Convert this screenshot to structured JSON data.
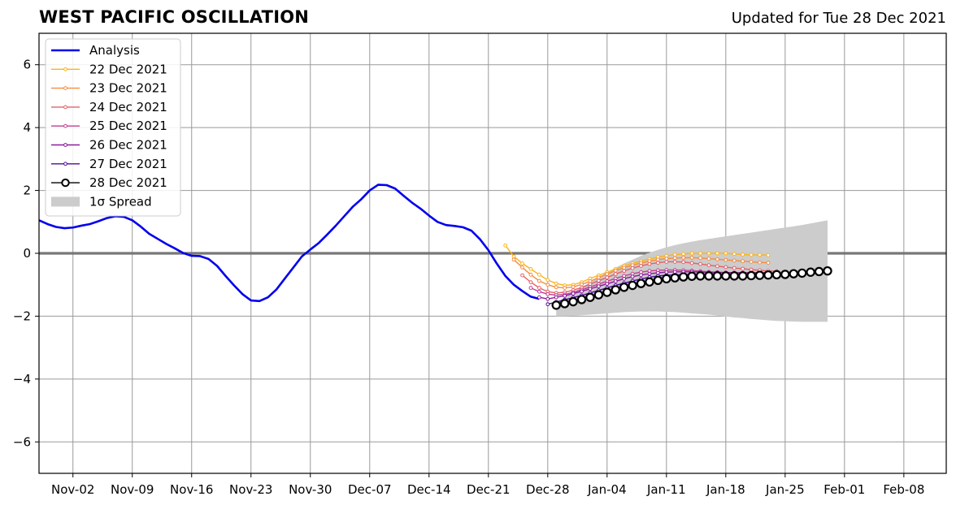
{
  "header": {
    "title": "WEST PACIFIC OSCILLATION",
    "updated": "Updated for Tue 28 Dec 2021"
  },
  "chart_data": {
    "type": "line",
    "title": "WEST PACIFIC OSCILLATION",
    "subtitle": "Updated for Tue 28 Dec 2021",
    "xlabel": "",
    "ylabel": "",
    "ylim": [
      -7,
      7
    ],
    "xlim": [
      "2021-10-29",
      "2022-02-13"
    ],
    "yticks": [
      -6,
      -4,
      -2,
      0,
      2,
      4,
      6
    ],
    "ytick_labels": [
      "−6",
      "−4",
      "−2",
      "0",
      "2",
      "4",
      "6"
    ],
    "xticks": [
      "2021-11-02",
      "2021-11-09",
      "2021-11-16",
      "2021-11-23",
      "2021-11-30",
      "2021-12-07",
      "2021-12-14",
      "2021-12-21",
      "2021-12-28",
      "2022-01-04",
      "2022-01-11",
      "2022-01-18",
      "2022-01-25",
      "2022-02-01",
      "2022-02-08"
    ],
    "xtick_labels": [
      "Nov-02",
      "Nov-09",
      "Nov-16",
      "Nov-23",
      "Nov-30",
      "Dec-07",
      "Dec-14",
      "Dec-21",
      "Dec-28",
      "Jan-04",
      "Jan-11",
      "Jan-18",
      "Jan-25",
      "Feb-01",
      "Feb-08"
    ],
    "grid": true,
    "legend_position": "top-left",
    "analysis": {
      "name": "Analysis",
      "color": "#0000ee",
      "start": "2021-10-29",
      "values": [
        1.05,
        0.93,
        0.84,
        0.8,
        0.82,
        0.88,
        0.93,
        1.02,
        1.12,
        1.18,
        1.16,
        1.05,
        0.85,
        0.62,
        0.46,
        0.3,
        0.16,
        0.01,
        -0.08,
        -0.09,
        -0.18,
        -0.4,
        -0.72,
        -1.02,
        -1.3,
        -1.5,
        -1.52,
        -1.4,
        -1.15,
        -0.8,
        -0.45,
        -0.1,
        0.12,
        0.33,
        0.6,
        0.88,
        1.18,
        1.48,
        1.72,
        2.0,
        2.18,
        2.17,
        2.06,
        1.83,
        1.61,
        1.42,
        1.2,
        1.0,
        0.9,
        0.87,
        0.83,
        0.72,
        0.45,
        0.1,
        -0.33,
        -0.72,
        -1.0,
        -1.2,
        -1.38,
        -1.45
      ]
    },
    "forecasts": [
      {
        "name": "22 Dec 2021",
        "color": "#fbb31a",
        "start": "2021-12-23",
        "values": [
          0.25,
          -0.1,
          -0.32,
          -0.5,
          -0.68,
          -0.85,
          -0.96,
          -1.02,
          -1.0,
          -0.92,
          -0.8,
          -0.7,
          -0.6,
          -0.5,
          -0.4,
          -0.32,
          -0.25,
          -0.18,
          -0.12,
          -0.08,
          -0.04,
          -0.02,
          0.0,
          0.0,
          0.0,
          0.0,
          0.0,
          -0.02,
          -0.04,
          -0.05,
          -0.05,
          -0.06
        ]
      },
      {
        "name": "23 Dec 2021",
        "color": "#f58b40",
        "start": "2021-12-24",
        "values": [
          -0.2,
          -0.45,
          -0.68,
          -0.88,
          -1.0,
          -1.08,
          -1.1,
          -1.07,
          -0.99,
          -0.89,
          -0.77,
          -0.66,
          -0.55,
          -0.46,
          -0.38,
          -0.31,
          -0.25,
          -0.2,
          -0.17,
          -0.15,
          -0.14,
          -0.14,
          -0.15,
          -0.17,
          -0.19,
          -0.21,
          -0.23,
          -0.25,
          -0.27,
          -0.29,
          -0.3
        ]
      },
      {
        "name": "24 Dec 2021",
        "color": "#e3616a",
        "start": "2021-12-25",
        "values": [
          -0.7,
          -0.92,
          -1.1,
          -1.22,
          -1.26,
          -1.24,
          -1.17,
          -1.09,
          -0.98,
          -0.87,
          -0.77,
          -0.66,
          -0.56,
          -0.47,
          -0.4,
          -0.34,
          -0.3,
          -0.27,
          -0.27,
          -0.28,
          -0.31,
          -0.34,
          -0.38,
          -0.41,
          -0.44,
          -0.47,
          -0.49,
          -0.52,
          -0.54,
          -0.56,
          -0.57
        ]
      },
      {
        "name": "25 Dec 2021",
        "color": "#c23f8f",
        "start": "2021-12-26",
        "values": [
          -1.1,
          -1.22,
          -1.3,
          -1.33,
          -1.31,
          -1.24,
          -1.16,
          -1.07,
          -0.98,
          -0.89,
          -0.8,
          -0.72,
          -0.65,
          -0.6,
          -0.56,
          -0.54,
          -0.53,
          -0.53,
          -0.54,
          -0.55,
          -0.57,
          -0.59,
          -0.6,
          -0.61,
          -0.62,
          -0.62,
          -0.62,
          -0.62,
          -0.62
        ]
      },
      {
        "name": "26 Dec 2021",
        "color": "#8e1a9c",
        "start": "2021-12-27",
        "values": [
          -1.4,
          -1.45,
          -1.4,
          -1.35,
          -1.28,
          -1.21,
          -1.13,
          -1.05,
          -0.97,
          -0.89,
          -0.81,
          -0.74,
          -0.69,
          -0.65,
          -0.62,
          -0.6,
          -0.59,
          -0.59,
          -0.59,
          -0.6,
          -0.61,
          -0.61,
          -0.62,
          -0.62,
          -0.62,
          -0.62,
          -0.62,
          -0.62
        ]
      },
      {
        "name": "27 Dec 2021",
        "color": "#4a0c9c",
        "start": "2021-12-28",
        "values": [
          -1.62,
          -1.55,
          -1.48,
          -1.41,
          -1.34,
          -1.26,
          -1.18,
          -1.1,
          -1.02,
          -0.95,
          -0.88,
          -0.82,
          -0.76,
          -0.72,
          -0.7,
          -0.69,
          -0.68,
          -0.68,
          -0.68,
          -0.68,
          -0.68,
          -0.68,
          -0.68,
          -0.67,
          -0.66,
          -0.65,
          -0.64,
          -0.62
        ]
      }
    ],
    "main_forecast": {
      "name": "28 Dec 2021",
      "color": "#000000",
      "start": "2021-12-29",
      "values": [
        -1.65,
        -1.6,
        -1.54,
        -1.47,
        -1.4,
        -1.32,
        -1.24,
        -1.16,
        -1.08,
        -1.02,
        -0.96,
        -0.91,
        -0.86,
        -0.81,
        -0.78,
        -0.75,
        -0.73,
        -0.72,
        -0.72,
        -0.72,
        -0.72,
        -0.72,
        -0.72,
        -0.71,
        -0.7,
        -0.69,
        -0.68,
        -0.67,
        -0.65,
        -0.63,
        -0.6,
        -0.58,
        -0.56
      ]
    },
    "spread": {
      "name": "1σ Spread",
      "color": "#cccccc",
      "start": "2021-12-29",
      "upper": [
        -1.55,
        -1.4,
        -1.24,
        -1.08,
        -0.92,
        -0.76,
        -0.6,
        -0.46,
        -0.32,
        -0.2,
        -0.08,
        0.02,
        0.11,
        0.19,
        0.26,
        0.32,
        0.37,
        0.42,
        0.46,
        0.5,
        0.54,
        0.58,
        0.62,
        0.66,
        0.7,
        0.74,
        0.78,
        0.82,
        0.86,
        0.9,
        0.95,
        1.0,
        1.05
      ],
      "lower": [
        -2.0,
        -2.0,
        -1.99,
        -1.97,
        -1.95,
        -1.93,
        -1.91,
        -1.89,
        -1.87,
        -1.86,
        -1.85,
        -1.85,
        -1.85,
        -1.86,
        -1.87,
        -1.89,
        -1.91,
        -1.93,
        -1.95,
        -1.98,
        -2.01,
        -2.04,
        -2.06,
        -2.09,
        -2.11,
        -2.13,
        -2.15,
        -2.16,
        -2.17,
        -2.18,
        -2.18,
        -2.18,
        -2.18
      ]
    },
    "legend": [
      "Analysis",
      "22 Dec 2021",
      "23 Dec 2021",
      "24 Dec 2021",
      "25 Dec 2021",
      "26 Dec 2021",
      "27 Dec 2021",
      "28 Dec 2021",
      "1σ Spread"
    ]
  }
}
